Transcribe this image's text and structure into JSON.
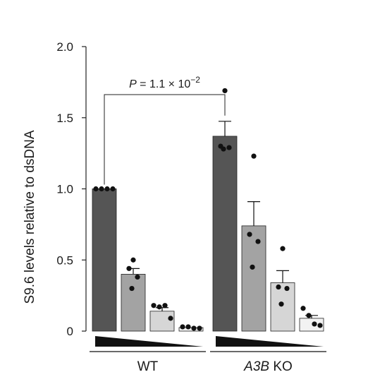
{
  "chart_data": {
    "type": "bar",
    "ylabel": "S9.6 levels relative to dsDNA",
    "ylim": [
      0,
      2.0
    ],
    "yticks": [
      {
        "value": 0,
        "label": "0"
      },
      {
        "value": 0.5,
        "label": "0.5"
      },
      {
        "value": 1.0,
        "label": "1.0"
      },
      {
        "value": 1.5,
        "label": "1.5"
      },
      {
        "value": 2.0,
        "label": "2.0"
      }
    ],
    "groups": [
      {
        "label": "WT",
        "bars": [
          {
            "value": 1.0,
            "error": 0.0,
            "fill": "#555555",
            "points": [
              1.0,
              1.0,
              1.0,
              1.0
            ]
          },
          {
            "value": 0.4,
            "error": 0.04,
            "fill": "#a3a3a3",
            "points": [
              0.5,
              0.44,
              0.38,
              0.3
            ]
          },
          {
            "value": 0.14,
            "error": 0.025,
            "fill": "#d6d6d6",
            "points": [
              0.18,
              0.17,
              0.18,
              0.09
            ]
          },
          {
            "value": 0.025,
            "error": 0.0,
            "fill": "#f2f2f2",
            "points": [
              0.03,
              0.03,
              0.02,
              0.02
            ]
          }
        ]
      },
      {
        "label_italic": "A3B",
        "label_rest": "KO",
        "bars": [
          {
            "value": 1.37,
            "error": 0.105,
            "fill": "#555555",
            "points": [
              1.69,
              1.3,
              1.28,
              1.29
            ]
          },
          {
            "value": 0.74,
            "error": 0.17,
            "fill": "#a3a3a3",
            "points": [
              1.23,
              0.68,
              0.63,
              0.45
            ]
          },
          {
            "value": 0.34,
            "error": 0.085,
            "fill": "#d6d6d6",
            "points": [
              0.58,
              0.31,
              0.3,
              0.19
            ]
          },
          {
            "value": 0.09,
            "error": 0.02,
            "fill": "#f2f2f2",
            "points": [
              0.16,
              0.11,
              0.05,
              0.04
            ]
          }
        ]
      }
    ],
    "comparison": {
      "p_prefix": "P",
      "p_middle": " = 1.1 × 10",
      "p_exp": "−2",
      "from_group": 0,
      "to_group": 1,
      "bar_index": 0
    },
    "grid": false,
    "dose_triangles": true
  }
}
